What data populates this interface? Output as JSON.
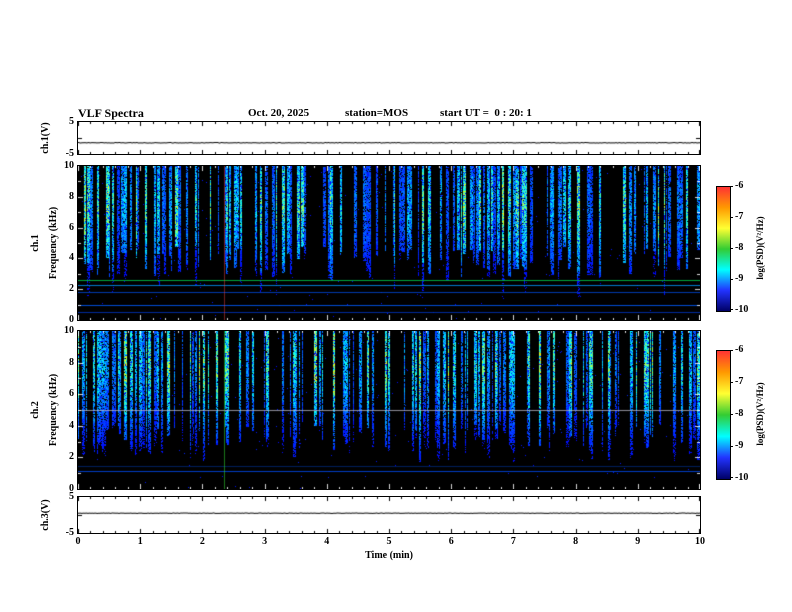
{
  "header": {
    "title": "VLF Spectra",
    "date": "Oct. 20, 2025",
    "station": "station=MOS",
    "start_ut": "start UT =  0 : 20: 1"
  },
  "axes": {
    "x_label": "Time (min)",
    "x_ticks": [
      "0",
      "1",
      "2",
      "3",
      "4",
      "5",
      "6",
      "7",
      "8",
      "9",
      "10"
    ],
    "spec_y_ticks": [
      "10",
      "8",
      "6",
      "4",
      "2",
      "0"
    ],
    "strip_y_ticks": [
      "5",
      "-5"
    ],
    "ch1_strip_label": "ch.1(V)",
    "ch3_strip_label": "ch.3(V)",
    "spec1_channel_label": "ch.1",
    "spec2_channel_label": "ch.2",
    "freq_axis_label": "Frequency (kHz)"
  },
  "colorbar": {
    "title": "log(PSD)(V²/Hz)",
    "ticks": [
      "-6",
      "-7",
      "-8",
      "-9",
      "-10"
    ],
    "colors_top_to_bottom": [
      "#ff3333",
      "#ff9900",
      "#ffff33",
      "#33cc33",
      "#00ffff",
      "#2233ff",
      "#000066"
    ]
  },
  "chart_data": [
    {
      "type": "line",
      "name": "ch.1 voltage strip",
      "xlabel": "Time (min)",
      "ylabel": "ch.1(V)",
      "xlim": [
        0,
        10
      ],
      "ylim": [
        -5,
        5
      ],
      "summary": "nearly constant flat trace at approximately -1.5 V across the full 10 minutes"
    },
    {
      "type": "heatmap",
      "name": "ch.1 spectrogram",
      "xlabel": "Time (min)",
      "ylabel": "Frequency (kHz)",
      "zlabel": "log(PSD)(V²/Hz)",
      "xlim": [
        0,
        10
      ],
      "ylim": [
        0,
        10
      ],
      "zlim": [
        -10,
        -6
      ],
      "summary": "dense broadband impulsive vertical streaks (sferics) from about 3 to 10 kHz over black background; persistent narrowband horizontal lines near 0.55, 1.0, 1.8, 2.25 and 2.6 kHz; faint red vertical transient near t=2.35 min"
    },
    {
      "type": "heatmap",
      "name": "ch.2 spectrogram",
      "xlabel": "Time (min)",
      "ylabel": "Frequency (kHz)",
      "zlabel": "log(PSD)(V²/Hz)",
      "xlim": [
        0,
        10
      ],
      "ylim": [
        0,
        10
      ],
      "zlim": [
        -10,
        -6
      ],
      "summary": "dense impulsive vertical streaks from about 2 to 10 kHz with bright yellow-green cores near 6-9 kHz; narrowband lines near 1.15 and 1.45 kHz and a pale gray line at 5.0 kHz; green vertical transient near t=2.35 min"
    },
    {
      "type": "line",
      "name": "ch.3 voltage strip",
      "xlabel": "Time (min)",
      "ylabel": "ch.3(V)",
      "xlim": [
        0,
        10
      ],
      "ylim": [
        -5,
        5
      ],
      "summary": "nearly constant flat trace at approximately +0.5 V across the full 10 minutes"
    }
  ],
  "render": {
    "spec_background": "#000000",
    "panels": {
      "ch1_voltage": {
        "seed": 7,
        "value": -1.5,
        "ylim": [
          -5,
          5
        ],
        "jitter": 0.6
      },
      "ch3_voltage": {
        "seed": 9,
        "value": 0.5,
        "ylim": [
          -5,
          5
        ],
        "jitter": 0.5
      },
      "spec1": {
        "seed": 42,
        "density": 0.42,
        "streak_min_freq": 2.6,
        "streak_min_freq_var": 2.2,
        "peak_freq": 7.5,
        "env_width": 4.5,
        "color_lo": 0.1,
        "color_span": 0.58,
        "deep_prob": 0.18,
        "h_lines": [
          {
            "f": 0.55,
            "color": "#0033bb",
            "alpha": 0.85
          },
          {
            "f": 1.0,
            "color": "#0055ee",
            "alpha": 0.9
          },
          {
            "f": 1.8,
            "color": "#0044cc",
            "alpha": 0.85
          },
          {
            "f": 2.25,
            "color": "#0099ff",
            "alpha": 0.8
          },
          {
            "f": 2.6,
            "color": "#00bb44",
            "alpha": 0.9
          }
        ],
        "v_lines": [
          {
            "t": 2.35,
            "color": "#ff4444",
            "alpha": 0.45
          }
        ]
      },
      "spec2": {
        "seed": 1337,
        "density": 0.4,
        "streak_min_freq": 1.6,
        "streak_min_freq_var": 2.5,
        "peak_freq": 8.0,
        "env_width": 4.2,
        "color_lo": 0.1,
        "color_span": 0.66,
        "deep_prob": 0.3,
        "h_lines": [
          {
            "f": 1.15,
            "color": "#0044dd",
            "alpha": 0.9
          },
          {
            "f": 1.45,
            "color": "#003399",
            "alpha": 0.6
          },
          {
            "f": 5.0,
            "color": "#bbbbcc",
            "alpha": 0.75
          }
        ],
        "v_lines": [
          {
            "t": 2.35,
            "color": "#33ee33",
            "alpha": 0.5
          }
        ]
      }
    }
  }
}
